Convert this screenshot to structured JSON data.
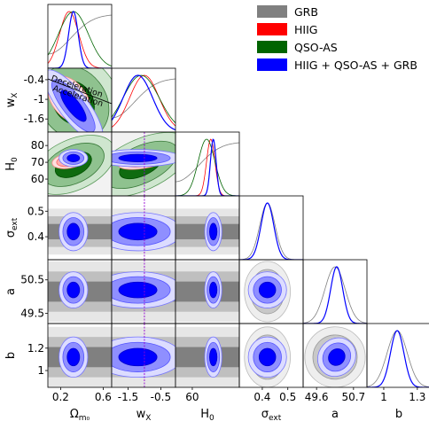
{
  "chart_data": {
    "type": "triangle",
    "parameters": [
      {
        "id": "Om",
        "label": "Ω",
        "sub": "m₀",
        "ticks": [
          0.2,
          0.6
        ],
        "range": [
          0.08,
          0.68
        ]
      },
      {
        "id": "wx",
        "label": "w",
        "sub": "X",
        "ticks": [
          -1.5,
          -0.5
        ],
        "range": [
          -2.0,
          -0.05
        ]
      },
      {
        "id": "H0",
        "label": "H",
        "sub": "0",
        "ticks": [
          60
        ],
        "range": [
          50,
          88
        ]
      },
      {
        "id": "sig",
        "label": "σ",
        "sub": "ext",
        "ticks": [
          0.4,
          0.5
        ],
        "range": [
          0.31,
          0.56
        ]
      },
      {
        "id": "a",
        "label": "a",
        "sub": "",
        "ticks": [
          49.6,
          50.7
        ],
        "range": [
          49.2,
          51.1
        ]
      },
      {
        "id": "b",
        "label": "b",
        "sub": "",
        "ticks": [
          1.0,
          1.3
        ],
        "range": [
          0.85,
          1.42
        ]
      }
    ],
    "row_ticks": {
      "wx": [
        -0.4,
        -1.0,
        -1.6
      ],
      "H0": [
        80,
        70,
        60
      ],
      "sig": [
        0.5,
        0.4
      ],
      "a": [
        50.5,
        49.5
      ],
      "b": [
        1.2,
        1.0
      ]
    },
    "legend": [
      {
        "label": "GRB",
        "color": "#808080"
      },
      {
        "label": "HIIG",
        "color": "#ff0000"
      },
      {
        "label": "QSO-AS",
        "color": "#006400"
      },
      {
        "label": "HIIG + QSO-AS + GRB",
        "color": "#0000ff"
      }
    ],
    "annotations": {
      "upper": "Deceleration",
      "lower": "Acceleration"
    },
    "reference_line": {
      "parameter": "wx",
      "value": -1.0,
      "color": "#9400d3"
    },
    "best_fit": {
      "Om": 0.32,
      "wx": -1.2,
      "H0": 72.5,
      "sig": 0.42,
      "a": 50.2,
      "b": 1.12
    },
    "sigma": {
      "Om": 0.045,
      "wx": 0.45,
      "H0": 1.7,
      "sig": 0.025,
      "a": 0.18,
      "b": 0.06
    },
    "series": [
      {
        "name": "GRB",
        "marginals": {
          "Om": "flat",
          "wx": "flat",
          "H0": "flat",
          "sig": [
            0.42,
            0.03
          ],
          "a": [
            50.15,
            0.3
          ],
          "b": [
            1.12,
            0.09
          ]
        }
      },
      {
        "name": "HIIG",
        "marginals": {
          "Om": [
            0.28,
            0.09
          ],
          "wx": [
            -1.0,
            0.45
          ],
          "H0": [
            71.0,
            2.5
          ]
        }
      },
      {
        "name": "QSO-AS",
        "marginals": {
          "Om": [
            0.32,
            0.14
          ],
          "wx": [
            -1.1,
            0.55
          ],
          "H0": [
            68.5,
            5.0
          ]
        }
      },
      {
        "name": "HIIG + QSO-AS + GRB",
        "marginals": {
          "Om": [
            0.32,
            0.045
          ],
          "wx": [
            -1.2,
            0.45
          ],
          "H0": [
            72.5,
            1.7
          ],
          "sig": [
            0.42,
            0.025
          ],
          "a": [
            50.2,
            0.18
          ],
          "b": [
            1.12,
            0.06
          ]
        }
      }
    ]
  }
}
